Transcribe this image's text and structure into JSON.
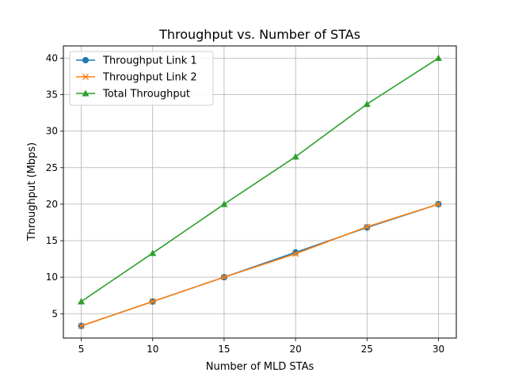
{
  "chart_data": {
    "type": "line",
    "title": "Throughput vs. Number of STAs",
    "xlabel": "Number of MLD STAs",
    "ylabel": "Throughput (Mbps)",
    "x": [
      5,
      10,
      15,
      20,
      25,
      30
    ],
    "xlim": [
      3.75,
      31.25
    ],
    "ylim": [
      1.67,
      41.67
    ],
    "xticks": [
      5,
      10,
      15,
      20,
      25,
      30
    ],
    "yticks": [
      5,
      10,
      15,
      20,
      25,
      30,
      35,
      40
    ],
    "grid": true,
    "legend_position": "top-left",
    "series": [
      {
        "name": "Throughput Link 1",
        "values": [
          3.33,
          6.67,
          10.0,
          13.4,
          16.8,
          20.0
        ],
        "color": "#1f77b4",
        "marker": "circle"
      },
      {
        "name": "Throughput Link 2",
        "values": [
          3.33,
          6.67,
          10.0,
          13.2,
          16.9,
          20.0
        ],
        "color": "#ff7f0e",
        "marker": "x"
      },
      {
        "name": "Total Throughput",
        "values": [
          6.67,
          13.3,
          20.0,
          26.5,
          33.7,
          40.0
        ],
        "color": "#2ca02c",
        "marker": "triangle"
      }
    ]
  }
}
